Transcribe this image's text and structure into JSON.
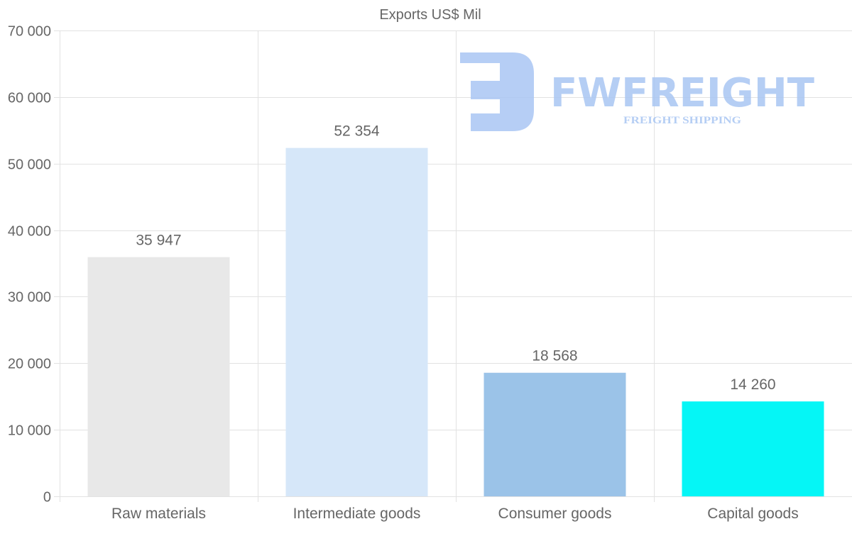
{
  "chart_data": {
    "type": "bar",
    "title": "Exports US$ Mil",
    "xlabel": "",
    "ylabel": "",
    "categories": [
      "Raw materials",
      "Intermediate goods",
      "Consumer goods",
      "Capital goods"
    ],
    "values": [
      35947,
      52354,
      18568,
      14260
    ],
    "value_labels": [
      "35 947",
      "52 354",
      "18 568",
      "14 260"
    ],
    "colors": [
      "#e8e8e8",
      "#d6e7f9",
      "#9bc3e8",
      "#05f6f6"
    ],
    "ylim": [
      0,
      70000
    ],
    "yticks": [
      0,
      10000,
      20000,
      30000,
      40000,
      50000,
      60000,
      70000
    ],
    "ytick_labels": [
      "0",
      "10 000",
      "20 000",
      "30 000",
      "40 000",
      "50 000",
      "60 000",
      "70 000"
    ],
    "grid": true,
    "legend": "none"
  },
  "watermark": {
    "brand": "FWFREIGHT",
    "tagline": "FREIGHT SHIPPING",
    "color": "#a9c6f3"
  }
}
